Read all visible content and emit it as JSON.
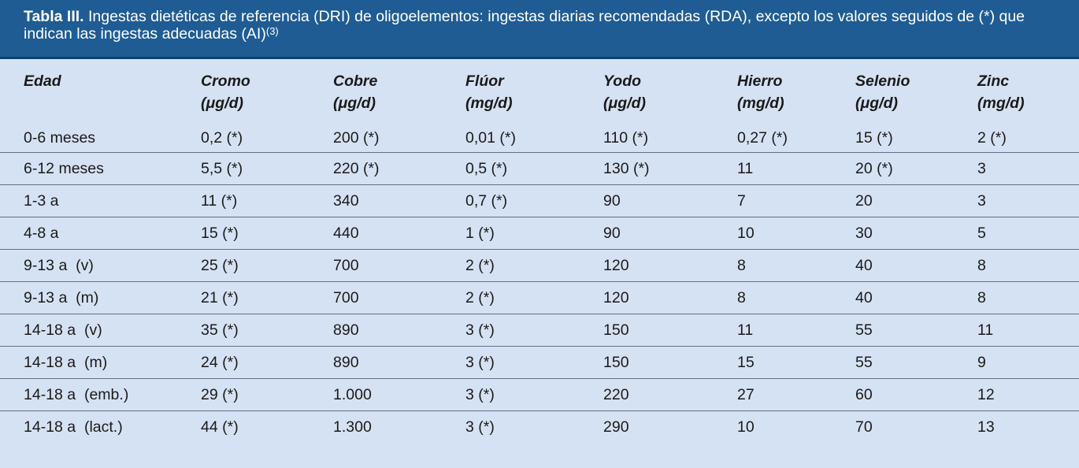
{
  "caption": {
    "label": "Tabla III.",
    "text": " Ingestas dietéticas de referencia (DRI) de oligoelementos: ingestas diarias recomendadas (RDA), excepto los valores seguidos de (*) que indican las ingestas adecuadas (AI)",
    "ref": "(3)"
  },
  "columns": [
    {
      "name": "Edad",
      "unit": ""
    },
    {
      "name": "Cromo",
      "unit": "(μg/d)"
    },
    {
      "name": "Cobre",
      "unit": "(μg/d)"
    },
    {
      "name": "Flúor",
      "unit": "(mg/d)"
    },
    {
      "name": "Yodo",
      "unit": "(μg/d)"
    },
    {
      "name": "Hierro",
      "unit": "(mg/d)"
    },
    {
      "name": "Selenio",
      "unit": "(μg/d)"
    },
    {
      "name": "Zinc",
      "unit": "(mg/d)"
    }
  ],
  "rows": [
    [
      "0-6 meses",
      "0,2 (*)",
      "200 (*)",
      "0,01 (*)",
      "110 (*)",
      "0,27 (*)",
      "15 (*)",
      "2 (*)"
    ],
    [
      "6-12 meses",
      "5,5 (*)",
      "220 (*)",
      "0,5 (*)",
      "130 (*)",
      "11",
      "20 (*)",
      "3"
    ],
    [
      "1-3 a",
      "11 (*)",
      "340",
      "0,7 (*)",
      "90",
      "7",
      "20",
      "3"
    ],
    [
      "4-8 a",
      "15 (*)",
      "440",
      "1 (*)",
      "90",
      "10",
      "30",
      "5"
    ],
    [
      "9-13 a  (v)",
      "25 (*)",
      "700",
      "2 (*)",
      "120",
      "8",
      "40",
      "8"
    ],
    [
      "9-13 a  (m)",
      "21 (*)",
      "700",
      "2 (*)",
      "120",
      "8",
      "40",
      "8"
    ],
    [
      "14-18 a  (v)",
      "35 (*)",
      "890",
      "3 (*)",
      "150",
      "11",
      "55",
      "11"
    ],
    [
      "14-18 a  (m)",
      "24 (*)",
      "890",
      "3 (*)",
      "150",
      "15",
      "55",
      "9"
    ],
    [
      "14-18 a  (emb.)",
      "29 (*)",
      "1.000",
      "3 (*)",
      "220",
      "27",
      "60",
      "12"
    ],
    [
      "14-18 a  (lact.)",
      "44 (*)",
      "1.300",
      "3 (*)",
      "290",
      "10",
      "70",
      "13"
    ]
  ],
  "colors": {
    "caption_bg": "#1f5c93",
    "table_bg": "#d5e2f3",
    "rule": "#5f6f88"
  }
}
